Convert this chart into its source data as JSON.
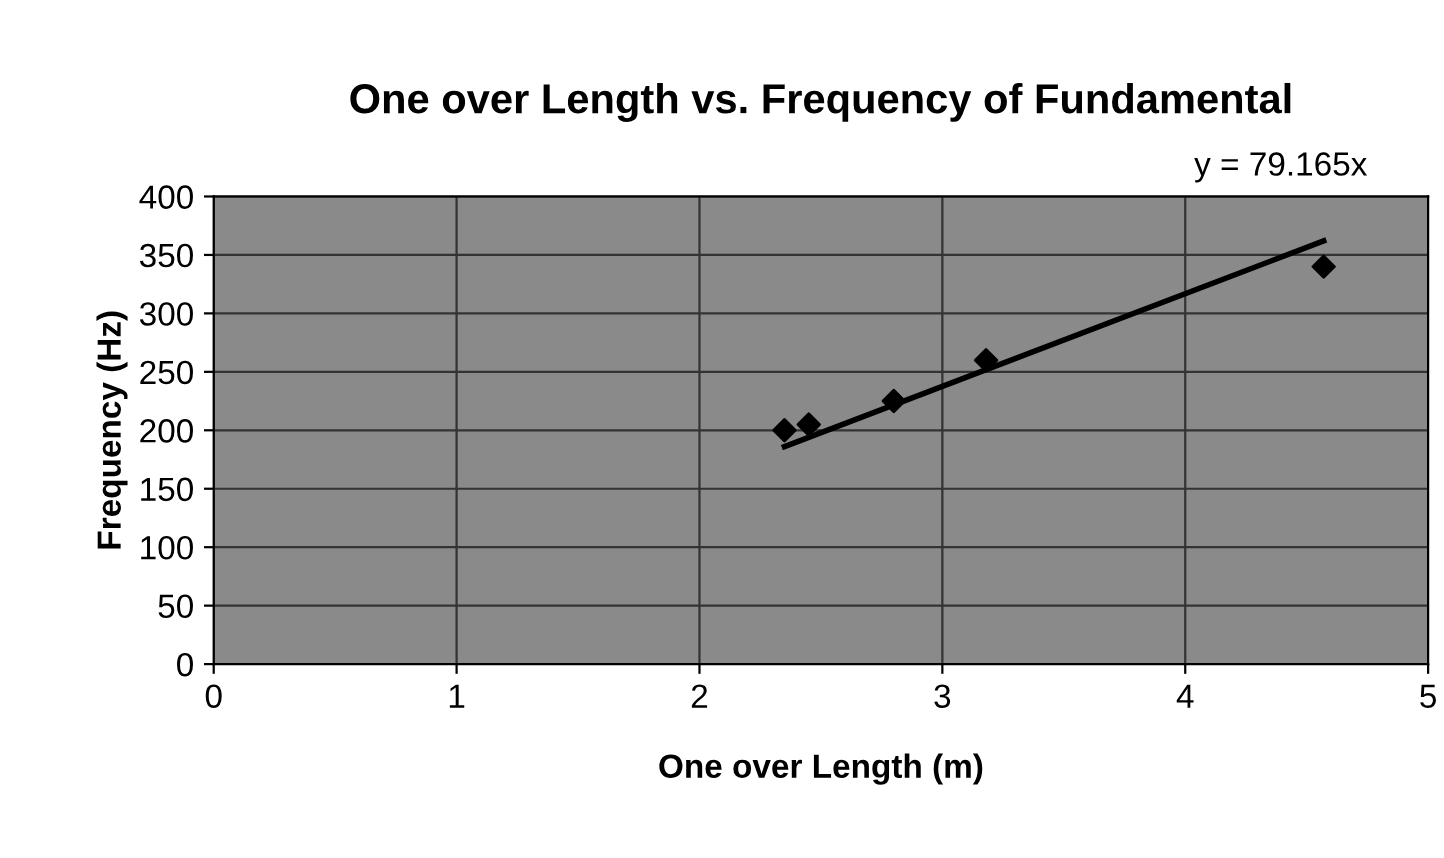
{
  "chart_data": {
    "type": "scatter",
    "title": "One over Length vs. Frequency of Fundamental",
    "xlabel": "One over Length (m)",
    "ylabel": "Frequency (Hz)",
    "x": [
      2.35,
      2.45,
      2.8,
      3.18,
      4.57
    ],
    "series": [
      {
        "color": "#000000",
        "values": [
          200,
          205,
          225,
          260,
          340
        ],
        "marker": "diamond"
      },
      {
        "type": "line",
        "color": "#000000",
        "x": [
          2.35,
          4.57
        ],
        "values": [
          186,
          362
        ]
      }
    ],
    "annotations": [
      "y = 79.165x"
    ],
    "xlim": [
      0,
      5
    ],
    "ylim": [
      0,
      400
    ],
    "xticks": [
      0,
      1,
      2,
      3,
      4,
      5
    ],
    "yticks": [
      0,
      50,
      100,
      150,
      200,
      250,
      300,
      350,
      400
    ],
    "grid": true,
    "legend": false
  }
}
